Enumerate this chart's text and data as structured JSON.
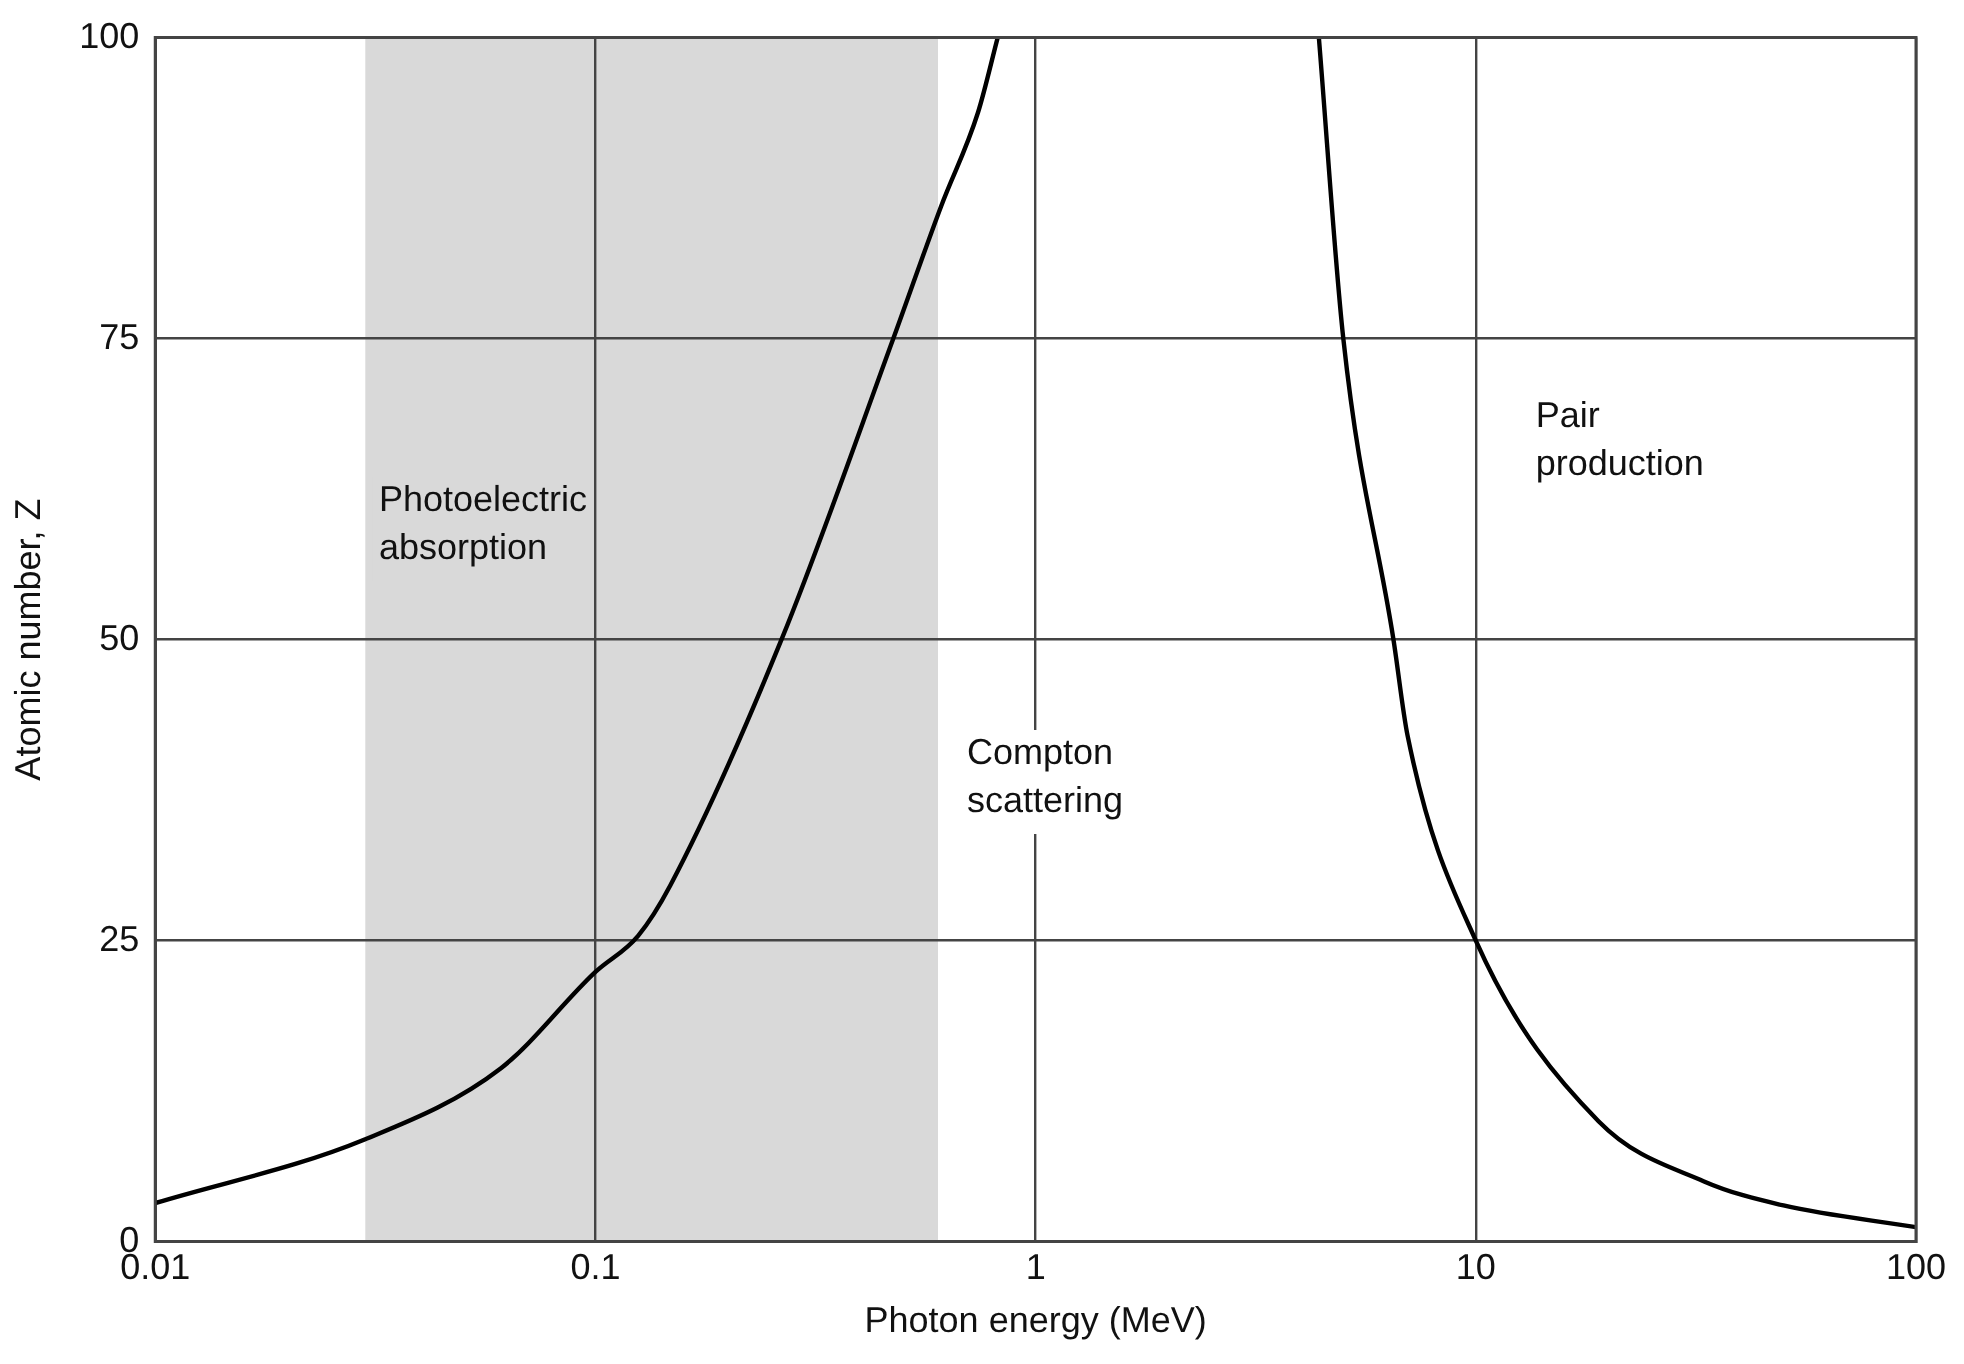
{
  "chart_data": {
    "type": "line",
    "xlabel": "Photon energy (MeV)",
    "ylabel": "Atomic number, Z",
    "log": "x",
    "xlim": [
      0.01,
      100
    ],
    "xticks": [
      0.01,
      0.1,
      1,
      10,
      100
    ],
    "ylim": [
      0,
      100
    ],
    "yticks": [
      0,
      25,
      50,
      75,
      100
    ],
    "grid": true,
    "legend": false,
    "marker": "none",
    "line_style": "solid",
    "series": [
      {
        "color": "#000000",
        "x": [
          0.01,
          0.03,
          0.061,
          0.1,
          0.125,
          0.148,
          0.266,
          0.475,
          0.61,
          0.74,
          0.82
        ],
        "values": [
          3.2,
          8.5,
          14.4,
          22.4,
          25.4,
          29.6,
          50.2,
          75,
          86,
          93.8,
          100
        ]
      },
      {
        "color": "#000000",
        "x": [
          4.4,
          5,
          6.5,
          7,
          10,
          19,
          33,
          50,
          100
        ],
        "values": [
          100,
          75,
          50,
          42,
          25,
          10,
          5,
          3,
          1.2
        ]
      }
    ],
    "bands": [
      {
        "axis": "x",
        "from": 0.03,
        "to": 0.6,
        "color": "#d9d9d9"
      }
    ],
    "annotations": [
      "Photoelectric\nabsorption",
      "Compton\nscattering",
      "Pair\nproduction"
    ]
  }
}
